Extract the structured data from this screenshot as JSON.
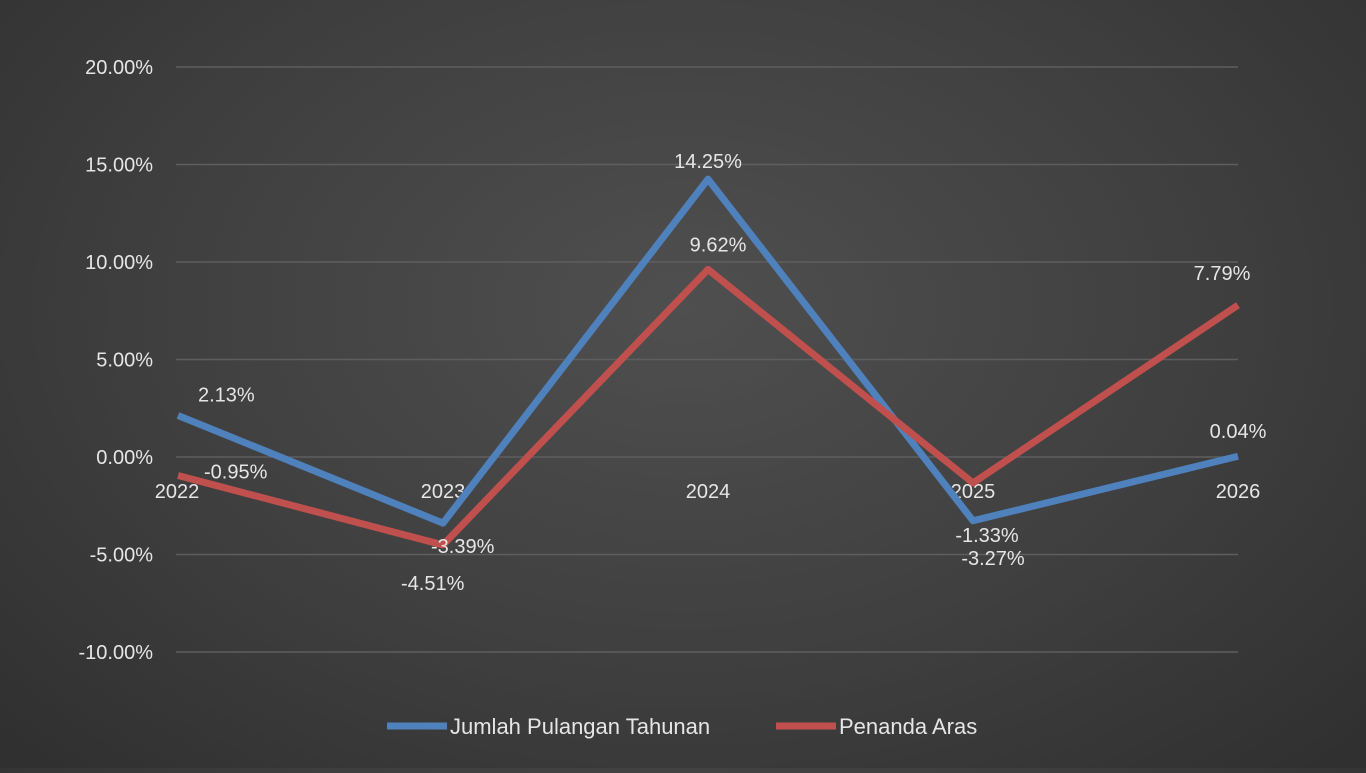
{
  "chart_data": {
    "type": "line",
    "categories": [
      "2022",
      "2023",
      "2024",
      "2025",
      "2026"
    ],
    "series": [
      {
        "name": "Jumlah Pulangan Tahunan",
        "values": [
          2.13,
          -3.39,
          14.25,
          -3.27,
          0.04
        ],
        "labels": [
          "2.13%",
          "-3.39%",
          "14.25%",
          "-3.27%",
          "0.04%"
        ],
        "color": "#4f81bd"
      },
      {
        "name": "Penanda Aras",
        "values": [
          -0.95,
          -4.51,
          9.62,
          -1.33,
          7.79
        ],
        "labels": [
          "-0.95%",
          "-4.51%",
          "9.62%",
          "-1.33%",
          "7.79%"
        ],
        "color": "#c0504d"
      }
    ],
    "ylim": [
      -10,
      20
    ],
    "yticks": [
      20,
      15,
      10,
      5,
      0,
      -5,
      -10
    ],
    "ytick_labels": [
      "20.00%",
      "15.00%",
      "10.00%",
      "5.00%",
      "0.00%",
      "-5.00%",
      "-10.00%"
    ],
    "grid": true,
    "legend_position": "bottom",
    "gridline_color": "#5e5e5e",
    "background_color": "#404040"
  }
}
